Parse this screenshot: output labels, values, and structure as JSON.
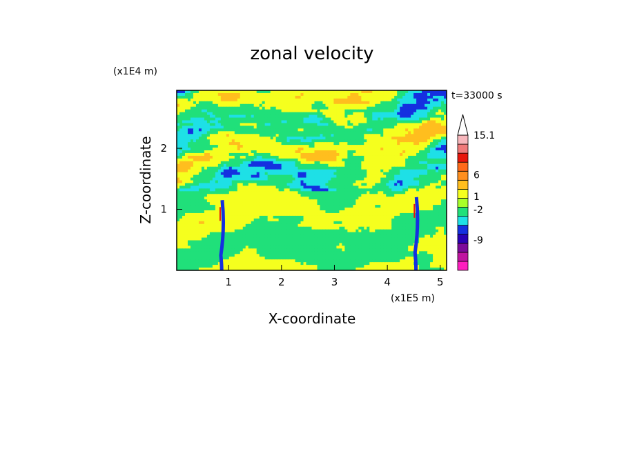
{
  "chart_data": {
    "type": "heatmap",
    "title": "zonal velocity",
    "xlabel": "X-coordinate",
    "ylabel": "Z-coordinate",
    "x_unit": "(x1E5 m)",
    "y_unit": "(x1E4 m)",
    "time_label": "t=33000 s",
    "x_range": [
      0.02,
      5.12
    ],
    "y_range": [
      0.0,
      2.95
    ],
    "x_ticks": [
      1,
      2,
      3,
      4,
      5
    ],
    "y_ticks": [
      1,
      2
    ],
    "colorbar": {
      "levels": [
        {
          "color": "#ff1fbf"
        },
        {
          "color": "#c014a0"
        },
        {
          "color": "#7c0a9a"
        },
        {
          "color": "#2a00b5"
        },
        {
          "color": "#1530e0"
        },
        {
          "color": "#1ee0e6"
        },
        {
          "color": "#20e07a"
        },
        {
          "color": "#a8ff2a"
        },
        {
          "color": "#f5ff1e"
        },
        {
          "color": "#ffbe1e"
        },
        {
          "color": "#ff8f1e"
        },
        {
          "color": "#ff6a1a"
        },
        {
          "color": "#e8160c"
        },
        {
          "color": "#f07a7a"
        },
        {
          "color": "#f7b7bc"
        }
      ],
      "tick_labels": [
        {
          "label": "-9",
          "value": -9
        },
        {
          "label": "-2",
          "value": -2
        },
        {
          "label": "1",
          "value": 1
        },
        {
          "label": "6",
          "value": 6
        },
        {
          "label": "15.1",
          "value": 15.1
        }
      ],
      "open_top_arrow": true
    },
    "field_description_colors": {
      "dominant_low": "#f5ff1e",
      "green": "#20e07a",
      "cyan": "#1ee0e6",
      "orange": "#ffbe1e",
      "blue": "#1530e0"
    }
  }
}
